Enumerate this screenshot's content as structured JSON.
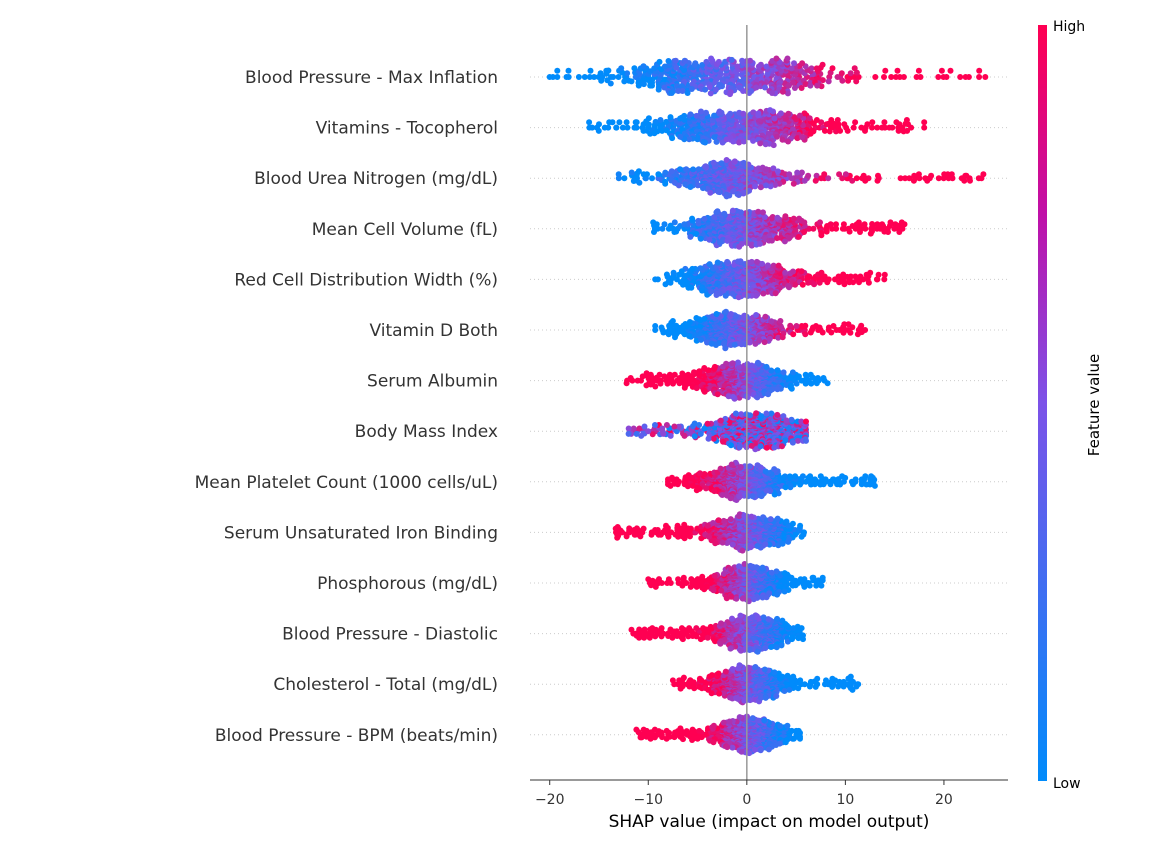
{
  "chart_data": {
    "type": "scatter",
    "subtype": "shap-beeswarm",
    "xlabel": "SHAP value (impact on model output)",
    "xlim": [
      -22,
      26.5
    ],
    "xticks": [
      -20,
      -10,
      0,
      10,
      20
    ],
    "xtick_labels": [
      "−20",
      "−10",
      "0",
      "10",
      "20"
    ],
    "colorbar": {
      "title": "Feature value",
      "high_label": "High",
      "low_label": "Low",
      "low_color": "#008bfb",
      "high_color": "#ff0052"
    },
    "features": [
      {
        "name": "Blood Pressure - Max Inflation",
        "min": -20,
        "max": 24.2,
        "peaks": [
          -6.5,
          2.5
        ],
        "spread": 14,
        "trend": 1
      },
      {
        "name": "Vitamins - Tocopherol",
        "min": -16,
        "max": 18,
        "peaks": [
          -4,
          2
        ],
        "spread": 12,
        "trend": 1
      },
      {
        "name": "Blood Urea Nitrogen (mg/dL)",
        "min": -13,
        "max": 24,
        "peaks": [
          -2
        ],
        "spread": 12,
        "trend": 1
      },
      {
        "name": "Mean Cell Volume (fL)",
        "min": -9.5,
        "max": 16,
        "peaks": [
          -2,
          1.5
        ],
        "spread": 10,
        "trend": 1
      },
      {
        "name": "Red Cell Distribution Width (%)",
        "min": -9.3,
        "max": 14,
        "peaks": [
          -2,
          0.5
        ],
        "spread": 10,
        "trend": 1
      },
      {
        "name": "Vitamin D Both",
        "min": -9.3,
        "max": 12,
        "peaks": [
          -1.5
        ],
        "spread": 10,
        "trend": 1
      },
      {
        "name": "Serum Albumin",
        "min": -12.2,
        "max": 8.2,
        "peaks": [
          -0.5
        ],
        "spread": 10,
        "trend": -1
      },
      {
        "name": "Body Mass Index",
        "min": -12,
        "max": 6,
        "peaks": [
          1
        ],
        "spread": 10,
        "trend": 0
      },
      {
        "name": "Mean Platelet Count (1000 cells/uL)",
        "min": -8,
        "max": 13,
        "peaks": [
          -0.5
        ],
        "spread": 10,
        "trend": -1
      },
      {
        "name": "Serum Unsaturated Iron Binding",
        "min": -13.3,
        "max": 5.8,
        "peaks": [
          0.3
        ],
        "spread": 9,
        "trend": -1
      },
      {
        "name": "Phosphorous (mg/dL)",
        "min": -10,
        "max": 7.7,
        "peaks": [
          0.2
        ],
        "spread": 9,
        "trend": -1
      },
      {
        "name": "Blood Pressure - Diastolic",
        "min": -11.7,
        "max": 5.7,
        "peaks": [
          0.5
        ],
        "spread": 9,
        "trend": -1
      },
      {
        "name": "Cholesterol - Total (mg/dL)",
        "min": -7.5,
        "max": 11.3,
        "peaks": [
          0.2
        ],
        "spread": 9,
        "trend": -1
      },
      {
        "name": "Blood Pressure - BPM (beats/min)",
        "min": -11.2,
        "max": 5.4,
        "peaks": [
          0.3
        ],
        "spread": 9,
        "trend": -1
      }
    ]
  }
}
